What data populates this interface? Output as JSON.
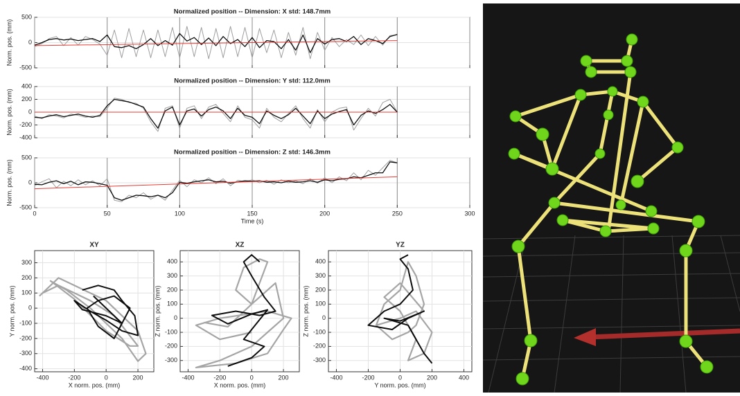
{
  "chart_data": [
    {
      "type": "line",
      "title": "Normalized position -- Dimension: X std: 148.7mm",
      "ylabel": "Norm. pos. (mm)",
      "grid": true,
      "show_xticklabels": false,
      "xlim": [
        0,
        300
      ],
      "xticks": [
        0,
        50,
        100,
        150,
        200,
        250,
        300
      ],
      "ylim": [
        -500,
        500
      ],
      "yticks": [
        -500,
        0,
        500
      ],
      "x": [
        0,
        5,
        10,
        15,
        20,
        25,
        30,
        35,
        40,
        45,
        50,
        55,
        60,
        65,
        70,
        75,
        80,
        85,
        90,
        95,
        100,
        105,
        110,
        115,
        120,
        125,
        130,
        135,
        140,
        145,
        150,
        155,
        160,
        165,
        170,
        175,
        180,
        185,
        190,
        195,
        200,
        205,
        210,
        215,
        220,
        225,
        230,
        235,
        240,
        245,
        250
      ],
      "series": [
        {
          "color": "#999999",
          "values": [
            -80,
            -20,
            80,
            120,
            -60,
            100,
            -50,
            120,
            60,
            -30,
            -250,
            250,
            -300,
            280,
            -280,
            250,
            -300,
            250,
            -280,
            300,
            -300,
            320,
            -280,
            300,
            -320,
            280,
            -300,
            320,
            -280,
            300,
            -300,
            280,
            -200,
            250,
            -300,
            200,
            -250,
            300,
            -320,
            200,
            -150,
            100,
            -80,
            60,
            -40,
            150,
            -60,
            120,
            -50,
            140,
            150
          ]
        },
        {
          "color": "#000000",
          "values": [
            -50,
            0,
            60,
            80,
            50,
            70,
            40,
            60,
            80,
            20,
            150,
            -80,
            -100,
            -60,
            -120,
            -40,
            80,
            -60,
            40,
            -50,
            180,
            30,
            100,
            -40,
            90,
            -60,
            120,
            -20,
            60,
            -80,
            100,
            -100,
            40,
            20,
            -120,
            60,
            -150,
            150,
            -200,
            80,
            -30,
            60,
            80,
            20,
            120,
            -40,
            80,
            40,
            -20,
            120,
            160
          ]
        },
        {
          "color": "#e8302a",
          "x": [
            0,
            250
          ],
          "values": [
            -60,
            40
          ]
        }
      ]
    },
    {
      "type": "line",
      "title": "Normalized position -- Dimension: Y std: 112.0mm",
      "ylabel": "Norm. pos. (mm)",
      "grid": true,
      "show_xticklabels": false,
      "xlim": [
        0,
        300
      ],
      "xticks": [
        0,
        50,
        100,
        150,
        200,
        250,
        300
      ],
      "ylim": [
        -400,
        400
      ],
      "yticks": [
        -400,
        -200,
        0,
        200,
        400
      ],
      "x": [
        0,
        5,
        10,
        15,
        20,
        25,
        30,
        35,
        40,
        45,
        50,
        55,
        60,
        65,
        70,
        75,
        80,
        85,
        90,
        95,
        100,
        105,
        110,
        115,
        120,
        125,
        130,
        135,
        140,
        145,
        150,
        155,
        160,
        165,
        170,
        175,
        180,
        185,
        190,
        195,
        200,
        205,
        210,
        215,
        220,
        225,
        230,
        235,
        240,
        245,
        250
      ],
      "series": [
        {
          "color": "#999999",
          "values": [
            -60,
            -100,
            -40,
            -60,
            -90,
            -30,
            -50,
            -80,
            -60,
            -70,
            60,
            220,
            200,
            150,
            140,
            60,
            -150,
            -300,
            60,
            100,
            -250,
            60,
            100,
            -100,
            80,
            120,
            -20,
            -150,
            100,
            -80,
            -120,
            -250,
            60,
            -80,
            -150,
            -20,
            100,
            -100,
            -250,
            40,
            -150,
            0,
            60,
            80,
            -280,
            -100,
            60,
            -60,
            150,
            200,
            0
          ]
        },
        {
          "color": "#000000",
          "values": [
            -80,
            -90,
            -60,
            -40,
            -70,
            -50,
            -30,
            -60,
            -80,
            -50,
            100,
            200,
            180,
            160,
            120,
            80,
            -100,
            -250,
            20,
            80,
            -200,
            20,
            50,
            -60,
            40,
            80,
            20,
            -100,
            60,
            -50,
            -80,
            -180,
            20,
            -50,
            -100,
            -40,
            60,
            -60,
            -180,
            20,
            -100,
            -30,
            10,
            40,
            -200,
            -50,
            20,
            -20,
            40,
            120,
            0
          ]
        },
        {
          "color": "#e8302a",
          "x": [
            0,
            250
          ],
          "values": [
            0,
            0
          ]
        }
      ]
    },
    {
      "type": "line",
      "title": "Normalized position -- Dimension: Z std: 146.3mm",
      "ylabel": "Norm. pos. (mm)",
      "xlabel": "Time (s)",
      "grid": true,
      "show_xticklabels": true,
      "xlim": [
        0,
        300
      ],
      "xticks": [
        0,
        50,
        100,
        150,
        200,
        250,
        300
      ],
      "ylim": [
        -500,
        500
      ],
      "yticks": [
        -500,
        0,
        500
      ],
      "x": [
        0,
        5,
        10,
        15,
        20,
        25,
        30,
        35,
        40,
        45,
        50,
        55,
        60,
        65,
        70,
        75,
        80,
        85,
        90,
        95,
        100,
        105,
        110,
        115,
        120,
        125,
        130,
        135,
        140,
        145,
        150,
        155,
        160,
        165,
        170,
        175,
        180,
        185,
        190,
        195,
        200,
        205,
        210,
        215,
        220,
        225,
        230,
        235,
        240,
        245,
        250
      ],
      "series": [
        {
          "color": "#999999",
          "values": [
            -60,
            20,
            80,
            -100,
            30,
            -60,
            60,
            -40,
            40,
            -60,
            80,
            -350,
            -380,
            -250,
            -300,
            -200,
            -330,
            -250,
            -350,
            -150,
            50,
            -80,
            60,
            0,
            100,
            -20,
            80,
            -60,
            50,
            20,
            60,
            0,
            50,
            -30,
            60,
            0,
            40,
            -20,
            80,
            -10,
            100,
            0,
            120,
            40,
            200,
            60,
            250,
            150,
            300,
            450,
            400
          ]
        },
        {
          "color": "#000000",
          "values": [
            -30,
            -40,
            10,
            40,
            -20,
            30,
            -40,
            20,
            10,
            -20,
            -50,
            -300,
            -350,
            -300,
            -250,
            -260,
            -280,
            -250,
            -300,
            -200,
            10,
            -10,
            20,
            40,
            60,
            20,
            30,
            -10,
            20,
            40,
            30,
            40,
            10,
            20,
            0,
            30,
            10,
            20,
            40,
            10,
            60,
            40,
            70,
            80,
            120,
            100,
            150,
            200,
            200,
            420,
            400
          ]
        },
        {
          "color": "#e8302a",
          "x": [
            0,
            250
          ],
          "values": [
            -120,
            120
          ]
        }
      ]
    },
    {
      "type": "line",
      "title": "XY",
      "xlabel": "X norm. pos. (mm)",
      "ylabel": "Y norm. pos. (mm)",
      "grid": true,
      "show_xticklabels": true,
      "xlim": [
        -450,
        300
      ],
      "xticks": [
        -400,
        -200,
        0,
        200
      ],
      "ylim": [
        -420,
        380
      ],
      "yticks": [
        -400,
        -300,
        -200,
        -100,
        0,
        100,
        200,
        300
      ],
      "series": [
        {
          "color": "#a0a0a0",
          "x": [
            -420,
            -300,
            -200,
            -100,
            0,
            100,
            200,
            250,
            200,
            100,
            0,
            -100,
            -250,
            -350,
            -200,
            0,
            150,
            200,
            50,
            -100,
            -300,
            -400
          ],
          "values": [
            80,
            200,
            150,
            100,
            50,
            -50,
            -150,
            -300,
            -350,
            -200,
            -100,
            0,
            120,
            180,
            60,
            -150,
            -250,
            -250,
            -50,
            50,
            150,
            100
          ]
        },
        {
          "color": "#000000",
          "x": [
            -150,
            -50,
            50,
            100,
            180,
            200,
            100,
            0,
            -100,
            -200,
            -150,
            0,
            100,
            150,
            50,
            -50,
            -120,
            -50,
            50,
            100,
            0,
            -80
          ],
          "values": [
            120,
            150,
            120,
            50,
            -50,
            -180,
            -150,
            -80,
            -20,
            50,
            -10,
            -50,
            -100,
            0,
            80,
            50,
            0,
            -120,
            -200,
            -100,
            0,
            80
          ]
        }
      ]
    },
    {
      "type": "line",
      "title": "XZ",
      "xlabel": "X norm. pos. (mm)",
      "ylabel": "Z norm. pos. (mm)",
      "grid": true,
      "show_xticklabels": true,
      "xlim": [
        -450,
        300
      ],
      "xticks": [
        -400,
        -200,
        0,
        200
      ],
      "ylim": [
        -380,
        480
      ],
      "yticks": [
        -300,
        -200,
        -100,
        0,
        100,
        200,
        300,
        400
      ],
      "series": [
        {
          "color": "#a0a0a0",
          "x": [
            -300,
            -150,
            0,
            100,
            50,
            -50,
            -100,
            0,
            150,
            200,
            100,
            0,
            -200,
            -350,
            -100,
            100,
            200,
            250,
            100,
            -200,
            -350,
            -200,
            0
          ],
          "values": [
            -30,
            -60,
            100,
            400,
            420,
            360,
            200,
            100,
            250,
            0,
            -100,
            -200,
            -300,
            -350,
            -320,
            -250,
            -80,
            0,
            50,
            0,
            -50,
            -150,
            -100
          ]
        },
        {
          "color": "#000000",
          "x": [
            50,
            0,
            -50,
            0,
            80,
            150,
            50,
            -100,
            -250,
            -150,
            0,
            100,
            0,
            -50,
            80,
            0,
            -100,
            -150
          ],
          "values": [
            400,
            450,
            400,
            300,
            150,
            50,
            20,
            50,
            20,
            -40,
            30,
            60,
            -80,
            -150,
            -200,
            -280,
            -320,
            -340
          ]
        }
      ]
    },
    {
      "type": "line",
      "title": "YZ",
      "xlabel": "Y norm. pos. (mm)",
      "ylabel": "Z norm. pos. (mm)",
      "grid": true,
      "show_xticklabels": true,
      "xlim": [
        -450,
        450
      ],
      "xticks": [
        -400,
        -200,
        0,
        200,
        400
      ],
      "ylim": [
        -380,
        480
      ],
      "yticks": [
        -300,
        -200,
        -100,
        0,
        100,
        200,
        300,
        400
      ],
      "series": [
        {
          "color": "#a0a0a0",
          "x": [
            -150,
            -100,
            0,
            50,
            100,
            150,
            100,
            50,
            -50,
            -150,
            0,
            100,
            200,
            150,
            50,
            100,
            0,
            -100,
            0,
            150
          ],
          "values": [
            -50,
            100,
            200,
            400,
            300,
            100,
            -50,
            -100,
            -150,
            -50,
            0,
            50,
            -100,
            -250,
            -300,
            -150,
            50,
            150,
            250,
            50
          ]
        },
        {
          "color": "#000000",
          "x": [
            50,
            0,
            50,
            80,
            0,
            -100,
            -200,
            -50,
            50,
            150,
            0,
            -100,
            50,
            100,
            150,
            200
          ],
          "values": [
            450,
            420,
            350,
            200,
            100,
            50,
            -50,
            -80,
            0,
            50,
            -20,
            0,
            -50,
            -150,
            -250,
            -320
          ]
        }
      ]
    }
  ]
}
